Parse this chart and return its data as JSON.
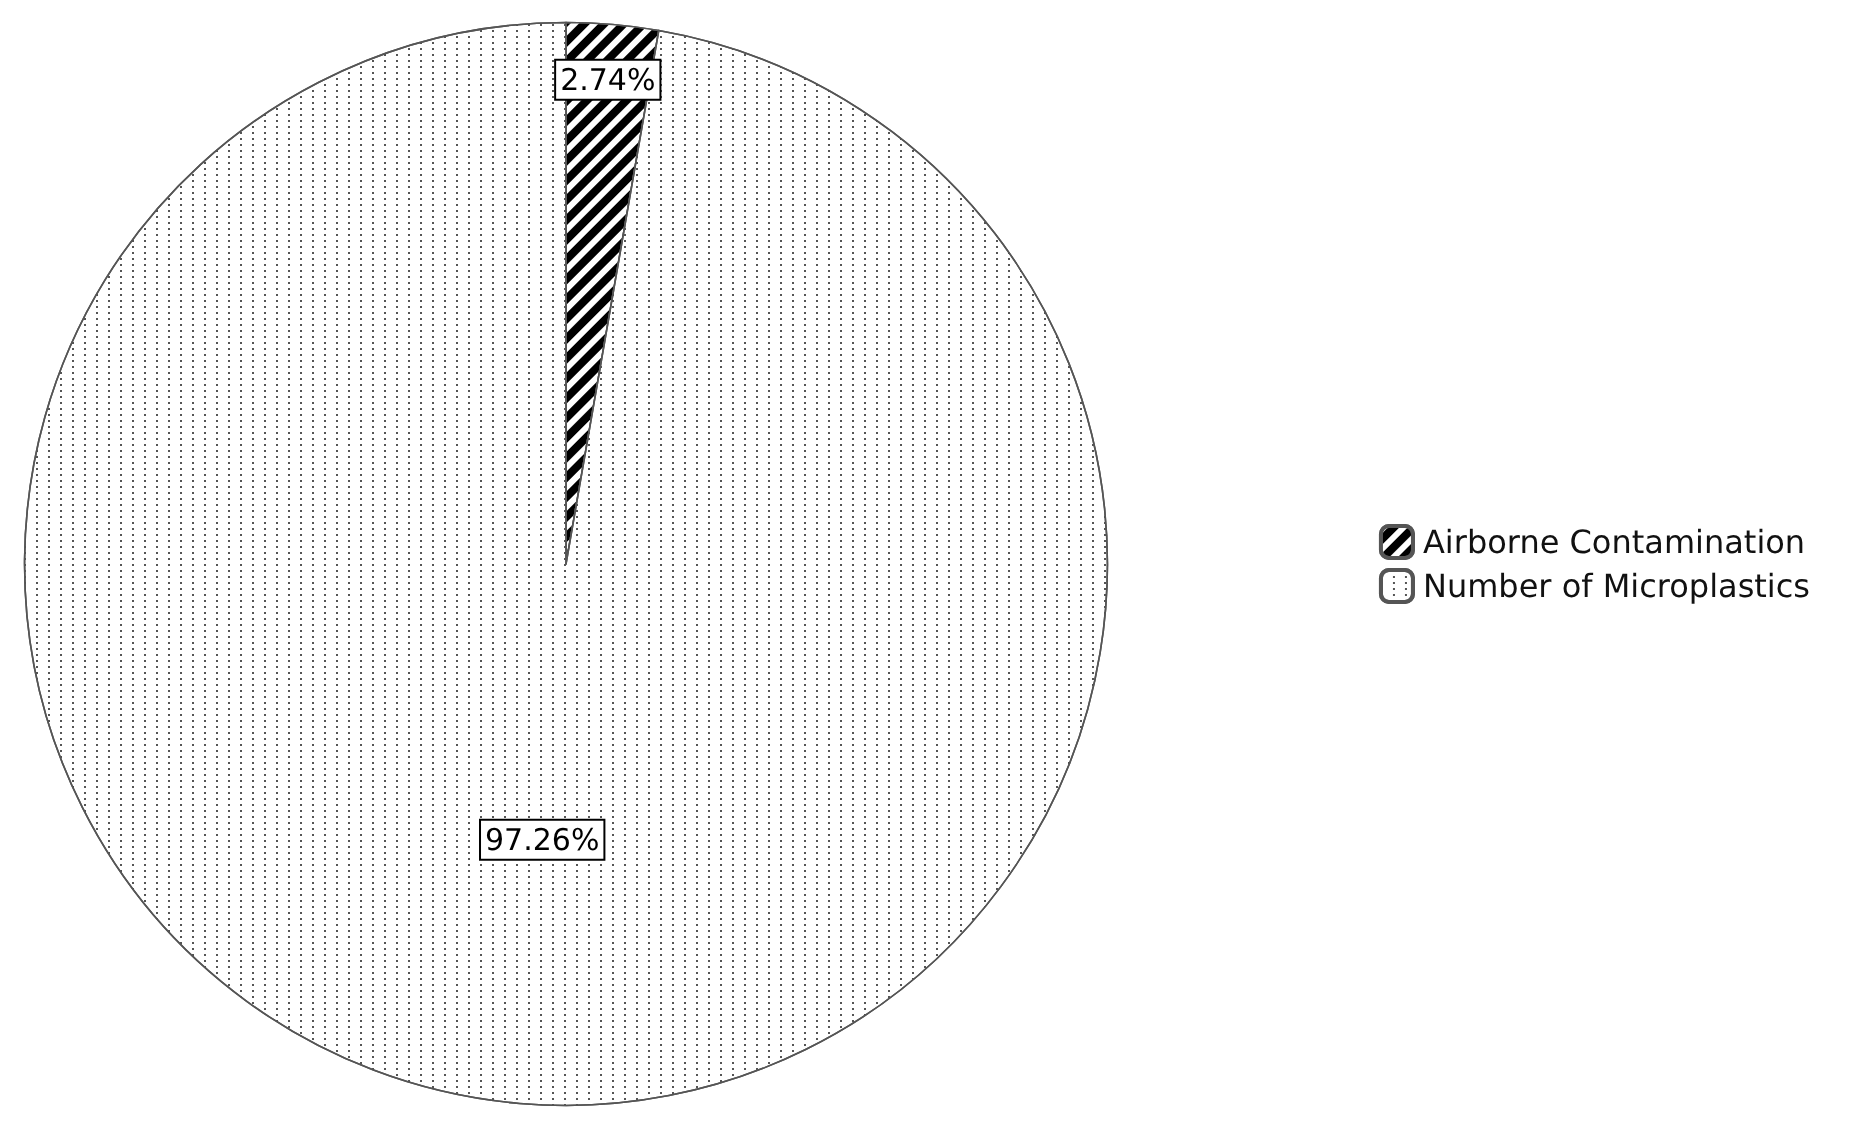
{
  "chart_data": {
    "type": "pie",
    "categories": [
      "Airborne Contamination",
      "Number of Microplastics"
    ],
    "values": [
      2.74,
      97.26
    ],
    "colors": [
      "#000000",
      "#ffffff"
    ],
    "value_labels": [
      "2.74%",
      "97.26%"
    ],
    "legend": "right"
  }
}
